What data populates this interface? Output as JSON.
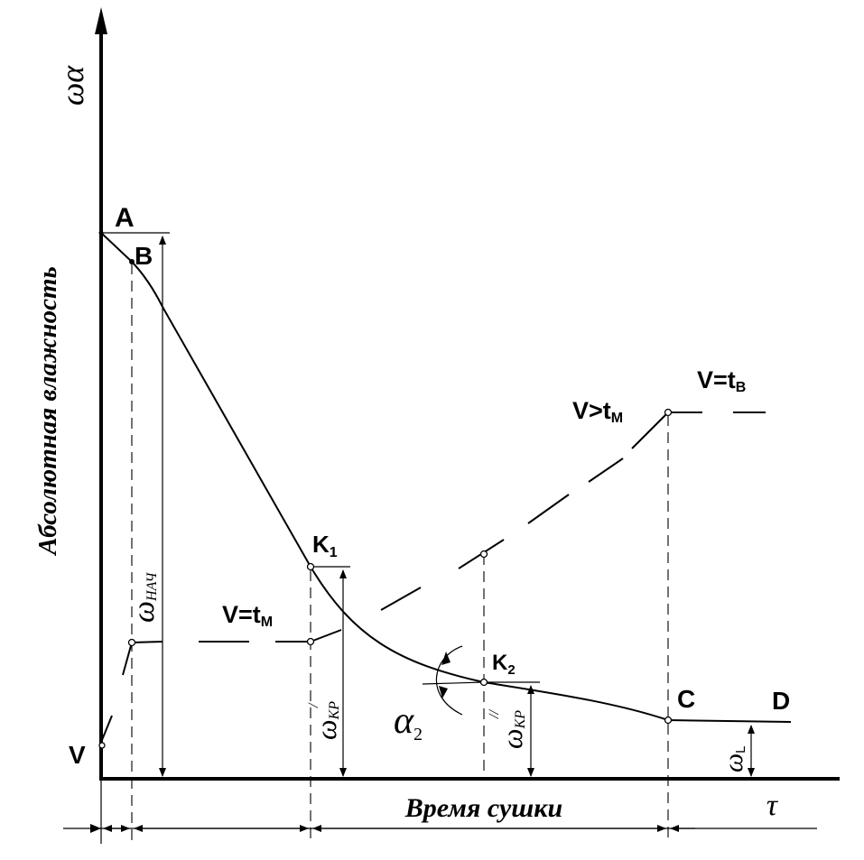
{
  "axes": {
    "y_symbol": "ωα",
    "y_label": "Абсолютная влажность",
    "x_label": "Время сушки",
    "x_symbol": "τ"
  },
  "points": {
    "A": "A",
    "B": "B",
    "K1": "K",
    "K1_sub": "1",
    "K2": "K",
    "K2_sub": "2",
    "C": "C",
    "D": "D",
    "V": "V"
  },
  "temperature_labels": {
    "v_tm_low": {
      "main": "V=t",
      "sub": "M"
    },
    "v_gt_tm": {
      "main": "V>t",
      "sub": "M"
    },
    "v_tb": {
      "main": "V=t",
      "sub": "B"
    }
  },
  "dimensions": {
    "w_initial": {
      "main": "ω",
      "sub": "НАЧ"
    },
    "w_kr1": {
      "main": "ω",
      "sub": "КР",
      "prime": "/"
    },
    "w_kr2": {
      "main": "ω",
      "sub": "КР",
      "prime": "//"
    },
    "w_l": {
      "main": "ω",
      "sub": "L"
    },
    "alpha": {
      "main": "α",
      "sub": "2"
    }
  }
}
